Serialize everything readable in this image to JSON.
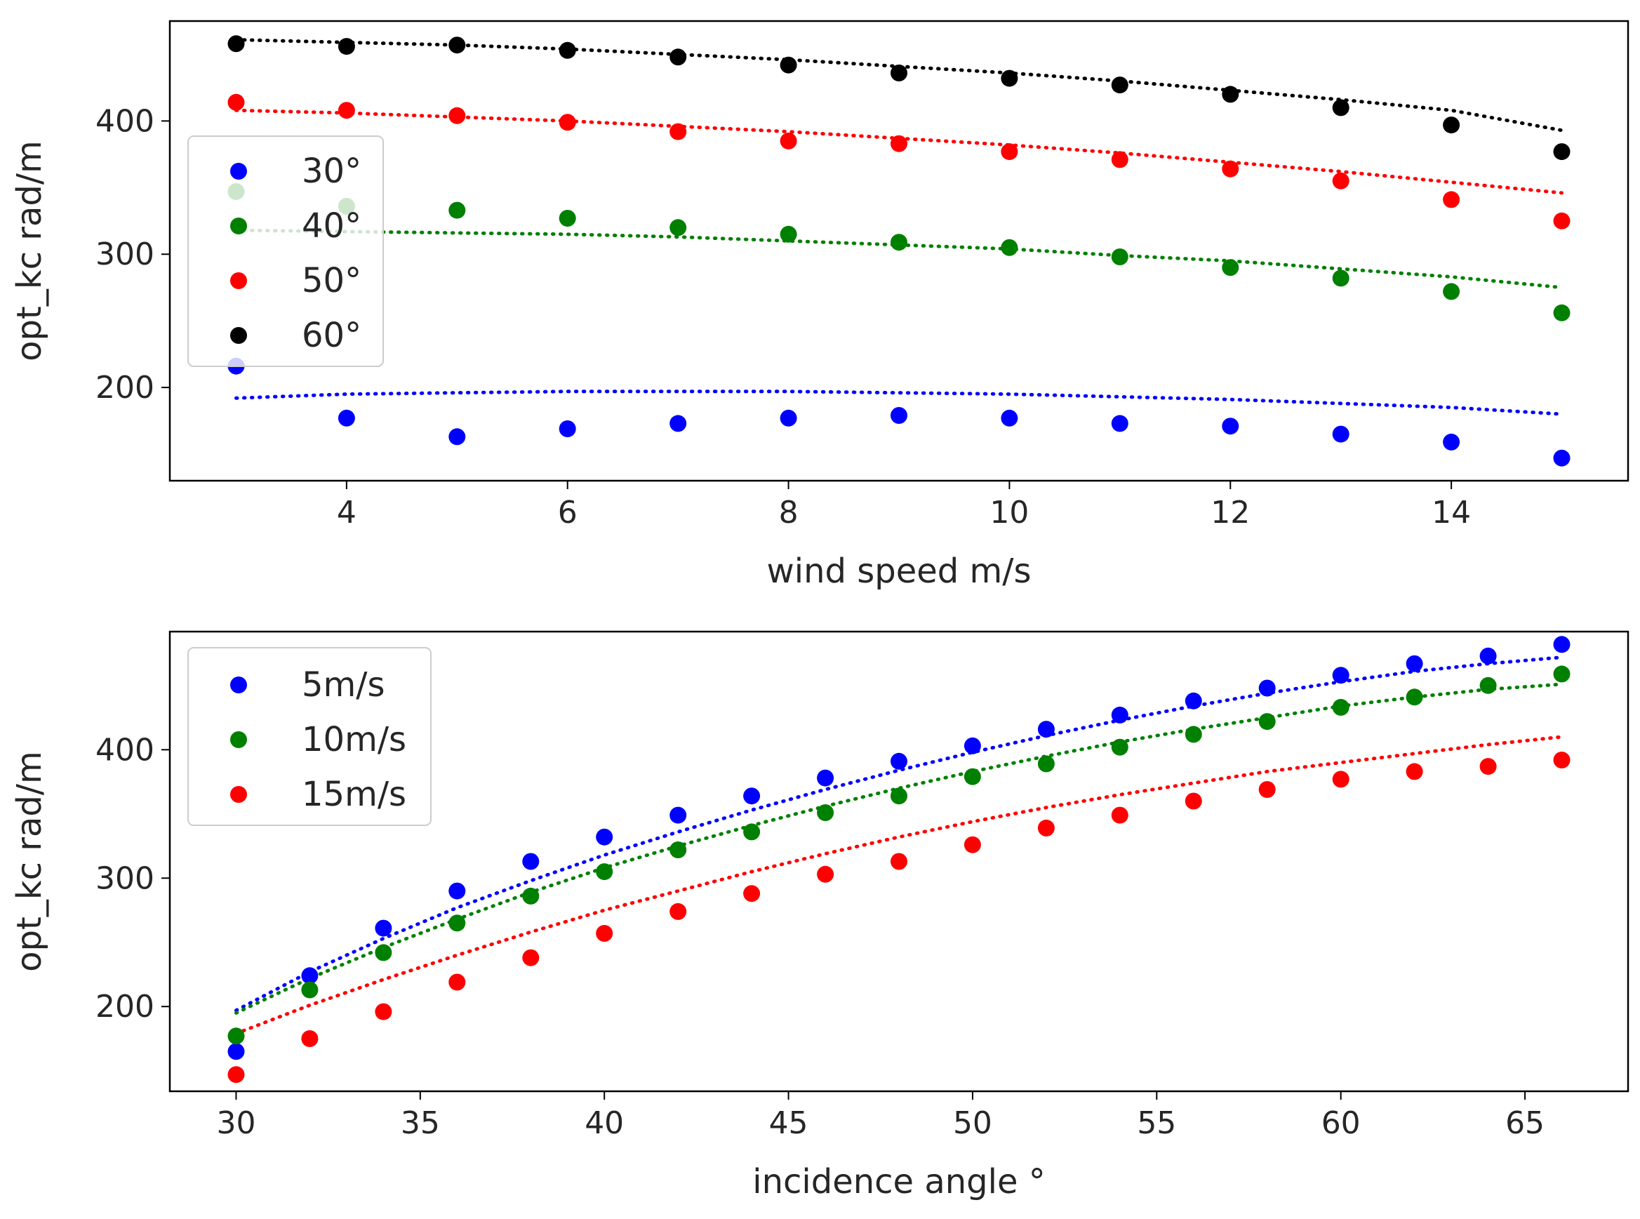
{
  "chart_data": [
    {
      "type": "scatter",
      "title": "",
      "xlabel": "wind speed m/s",
      "ylabel": "opt_kc rad/m",
      "xlim": [
        2.4,
        15.6
      ],
      "ylim": [
        130,
        475
      ],
      "xticks": [
        4,
        6,
        8,
        10,
        12,
        14
      ],
      "yticks": [
        200,
        300,
        400
      ],
      "legend_position": "center-left",
      "x": [
        3,
        4,
        5,
        6,
        7,
        8,
        9,
        10,
        11,
        12,
        13,
        14,
        15
      ],
      "series": [
        {
          "name": "30°",
          "color": "#0000ff",
          "values": [
            216,
            177,
            163,
            169,
            173,
            177,
            179,
            177,
            173,
            171,
            165,
            159,
            147
          ],
          "fit": [
            192,
            195,
            196,
            197,
            197,
            197,
            196,
            195,
            193,
            191,
            188,
            185,
            180
          ]
        },
        {
          "name": "40°",
          "color": "#008000",
          "values": [
            347,
            336,
            333,
            327,
            320,
            315,
            309,
            305,
            298,
            290,
            282,
            272,
            256
          ],
          "fit": [
            318,
            317,
            316,
            315,
            313,
            310,
            307,
            304,
            299,
            295,
            289,
            283,
            275
          ]
        },
        {
          "name": "50°",
          "color": "#ff0000",
          "values": [
            414,
            408,
            404,
            399,
            392,
            385,
            383,
            377,
            371,
            364,
            355,
            341,
            325
          ],
          "fit": [
            408,
            406,
            403,
            400,
            396,
            392,
            387,
            382,
            376,
            369,
            362,
            354,
            346
          ]
        },
        {
          "name": "60°",
          "color": "#000000",
          "values": [
            458,
            456,
            457,
            453,
            448,
            442,
            436,
            432,
            427,
            420,
            410,
            397,
            377
          ],
          "fit": [
            461,
            459,
            457,
            454,
            450,
            446,
            441,
            436,
            430,
            423,
            416,
            408,
            393
          ]
        }
      ]
    },
    {
      "type": "scatter",
      "title": "",
      "xlabel": "incidence angle °",
      "ylabel": "opt_kc rad/m",
      "xlim": [
        28.2,
        67.8
      ],
      "ylim": [
        134,
        492
      ],
      "xticks": [
        30,
        35,
        40,
        45,
        50,
        55,
        60,
        65
      ],
      "yticks": [
        200,
        300,
        400
      ],
      "legend_position": "upper-left",
      "x": [
        30,
        32,
        34,
        36,
        38,
        40,
        42,
        44,
        46,
        48,
        50,
        52,
        54,
        56,
        58,
        60,
        62,
        64,
        66
      ],
      "series": [
        {
          "name": "5m/s",
          "color": "#0000ff",
          "values": [
            165,
            224,
            261,
            290,
            313,
            332,
            349,
            364,
            378,
            391,
            403,
            416,
            427,
            438,
            448,
            458,
            467,
            473,
            482
          ],
          "fit": [
            197,
            227,
            253,
            277,
            298,
            318,
            336,
            353,
            369,
            384,
            398,
            411,
            423,
            434,
            444,
            453,
            461,
            467,
            472
          ]
        },
        {
          "name": "10m/s",
          "color": "#008000",
          "values": [
            177,
            213,
            242,
            265,
            286,
            305,
            322,
            336,
            351,
            364,
            379,
            389,
            402,
            412,
            422,
            433,
            441,
            450,
            459
          ],
          "fit": [
            195,
            222,
            246,
            268,
            289,
            308,
            325,
            341,
            356,
            370,
            383,
            395,
            406,
            416,
            425,
            434,
            441,
            447,
            451
          ]
        },
        {
          "name": "15m/s",
          "color": "#ff0000",
          "values": [
            147,
            175,
            196,
            219,
            238,
            257,
            274,
            288,
            303,
            313,
            326,
            339,
            349,
            360,
            369,
            377,
            383,
            387,
            392
          ],
          "fit": [
            179,
            201,
            221,
            240,
            258,
            275,
            290,
            305,
            319,
            332,
            344,
            355,
            365,
            374,
            383,
            390,
            397,
            404,
            410
          ]
        }
      ]
    }
  ]
}
